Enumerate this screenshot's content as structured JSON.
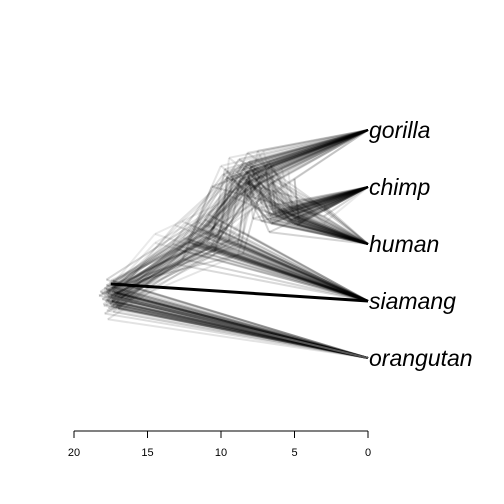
{
  "chart_data": {
    "type": "densitree",
    "title": "",
    "xlabel": "",
    "ylabel": "",
    "x_axis": {
      "reversed": true,
      "range": [
        20,
        0
      ],
      "ticks": [
        {
          "value": 20,
          "label": "20"
        },
        {
          "value": 15,
          "label": "15"
        },
        {
          "value": 10,
          "label": "10"
        },
        {
          "value": 5,
          "label": "5"
        },
        {
          "value": 0,
          "label": "0"
        }
      ]
    },
    "tips": [
      {
        "name": "gorilla",
        "order": 1
      },
      {
        "name": "chimp",
        "order": 2
      },
      {
        "name": "human",
        "order": 3
      },
      {
        "name": "siamang",
        "order": 4
      },
      {
        "name": "orangutan",
        "order": 5
      }
    ],
    "consensus_tree": {
      "root_age": 17.5,
      "ape_split_age": 11.0,
      "african_split_age": 8.0,
      "chimp_human_split_age": 5.5
    },
    "highlighted_lines": [
      {
        "from_age": 17.5,
        "to": "siamang",
        "weight": "heavy",
        "color": "#000000"
      },
      {
        "from_age": 17.5,
        "to": "orangutan",
        "weight": "medium",
        "color": "#555555"
      }
    ],
    "tree_line_color": "#000000",
    "grid": false,
    "legend": "none"
  }
}
